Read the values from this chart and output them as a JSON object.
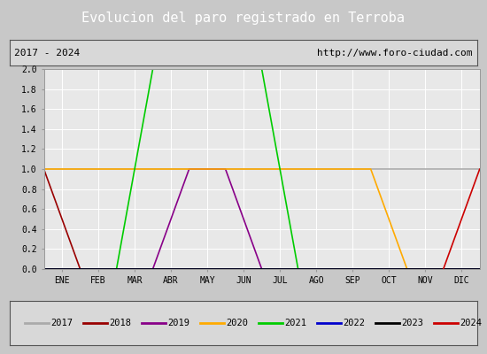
{
  "title": "Evolucion del paro registrado en Terroba",
  "subtitle_left": "2017 - 2024",
  "subtitle_right": "http://www.foro-ciudad.com",
  "ylim": [
    0.0,
    2.0
  ],
  "title_bg_color": "#5b8dd9",
  "title_fg_color": "#ffffff",
  "plot_bg_color": "#e8e8e8",
  "outer_bg_color": "#c8c8c8",
  "grid_color": "#ffffff",
  "months": [
    "ENE",
    "FEB",
    "MAR",
    "ABR",
    "MAY",
    "JUN",
    "JUL",
    "AGO",
    "SEP",
    "OCT",
    "NOV",
    "DIC"
  ],
  "series": [
    {
      "label": "2017",
      "color": "#aaaaaa",
      "x": [
        -0.5,
        11.5
      ],
      "y": [
        1,
        1
      ]
    },
    {
      "label": "2018",
      "color": "#990000",
      "x": [
        -0.5,
        0.5
      ],
      "y": [
        1,
        0
      ]
    },
    {
      "label": "2019",
      "color": "#880088",
      "x": [
        2.5,
        3.5,
        4.5,
        5.5
      ],
      "y": [
        0,
        1,
        1,
        0
      ]
    },
    {
      "label": "2020",
      "color": "#ffaa00",
      "x": [
        -0.5,
        8.5,
        9.5,
        10.5
      ],
      "y": [
        1,
        1,
        0,
        0
      ]
    },
    {
      "label": "2021",
      "color": "#00cc00",
      "x": [
        1.5,
        2.5,
        5.5,
        6.5
      ],
      "y": [
        0,
        2,
        2,
        0
      ]
    },
    {
      "label": "2022",
      "color": "#0000cc",
      "x": [
        -0.5,
        11.5
      ],
      "y": [
        0,
        0
      ]
    },
    {
      "label": "2023",
      "color": "#000000",
      "x": [
        -0.5,
        11.5
      ],
      "y": [
        0,
        0
      ]
    },
    {
      "label": "2024",
      "color": "#cc0000",
      "x": [
        10.5,
        11.5
      ],
      "y": [
        0,
        1
      ]
    }
  ],
  "legend_items": [
    {
      "label": "2017",
      "color": "#aaaaaa"
    },
    {
      "label": "2018",
      "color": "#990000"
    },
    {
      "label": "2019",
      "color": "#880088"
    },
    {
      "label": "2020",
      "color": "#ffaa00"
    },
    {
      "label": "2021",
      "color": "#00cc00"
    },
    {
      "label": "2022",
      "color": "#0000cc"
    },
    {
      "label": "2023",
      "color": "#000000"
    },
    {
      "label": "2024",
      "color": "#cc0000"
    }
  ]
}
